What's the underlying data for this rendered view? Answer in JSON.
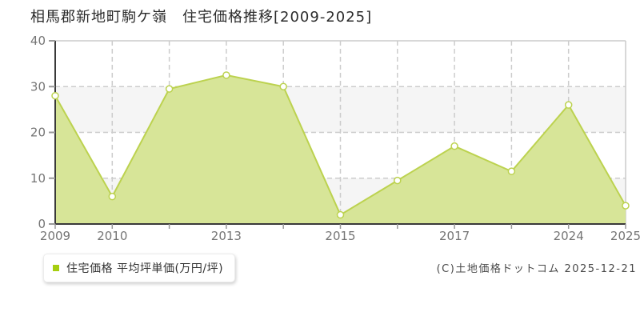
{
  "title": "相馬郡新地町駒ケ嶺　住宅価格推移[2009-2025]",
  "legend": {
    "label": "住宅価格 平均坪単価(万円/坪)",
    "marker_color": "#a6ce10"
  },
  "footer": {
    "copyright": "(C)土地価格ドットコム 2025-12-21"
  },
  "chart_data": {
    "type": "area",
    "title": "相馬郡新地町駒ケ嶺　住宅価格推移[2009-2025]",
    "series_name": "住宅価格 平均坪単価(万円/坪)",
    "categories": [
      "2009",
      "2010",
      "",
      "2013",
      "",
      "2015",
      "",
      "2017",
      "",
      "2024",
      "2025"
    ],
    "values": [
      28,
      6,
      29.5,
      32.5,
      30,
      2,
      9.5,
      17,
      11.5,
      26,
      4
    ],
    "xlabel": "",
    "ylabel": "平均坪単価(万円/坪)",
    "ylim": [
      0,
      40
    ],
    "yticks": [
      0,
      10,
      20,
      30,
      40
    ],
    "grid": true,
    "legend_position": "bottom-left",
    "colors": {
      "area_fill": "#d7e598",
      "line": "#bcd24f",
      "marker_fill": "#ffffff",
      "band": "#f5f5f5",
      "band_alt": "#ffffff",
      "grid": "#cccccc",
      "axis": "#3a3a3a",
      "tick_mark": "#999999",
      "tick_text": "#757575"
    }
  }
}
